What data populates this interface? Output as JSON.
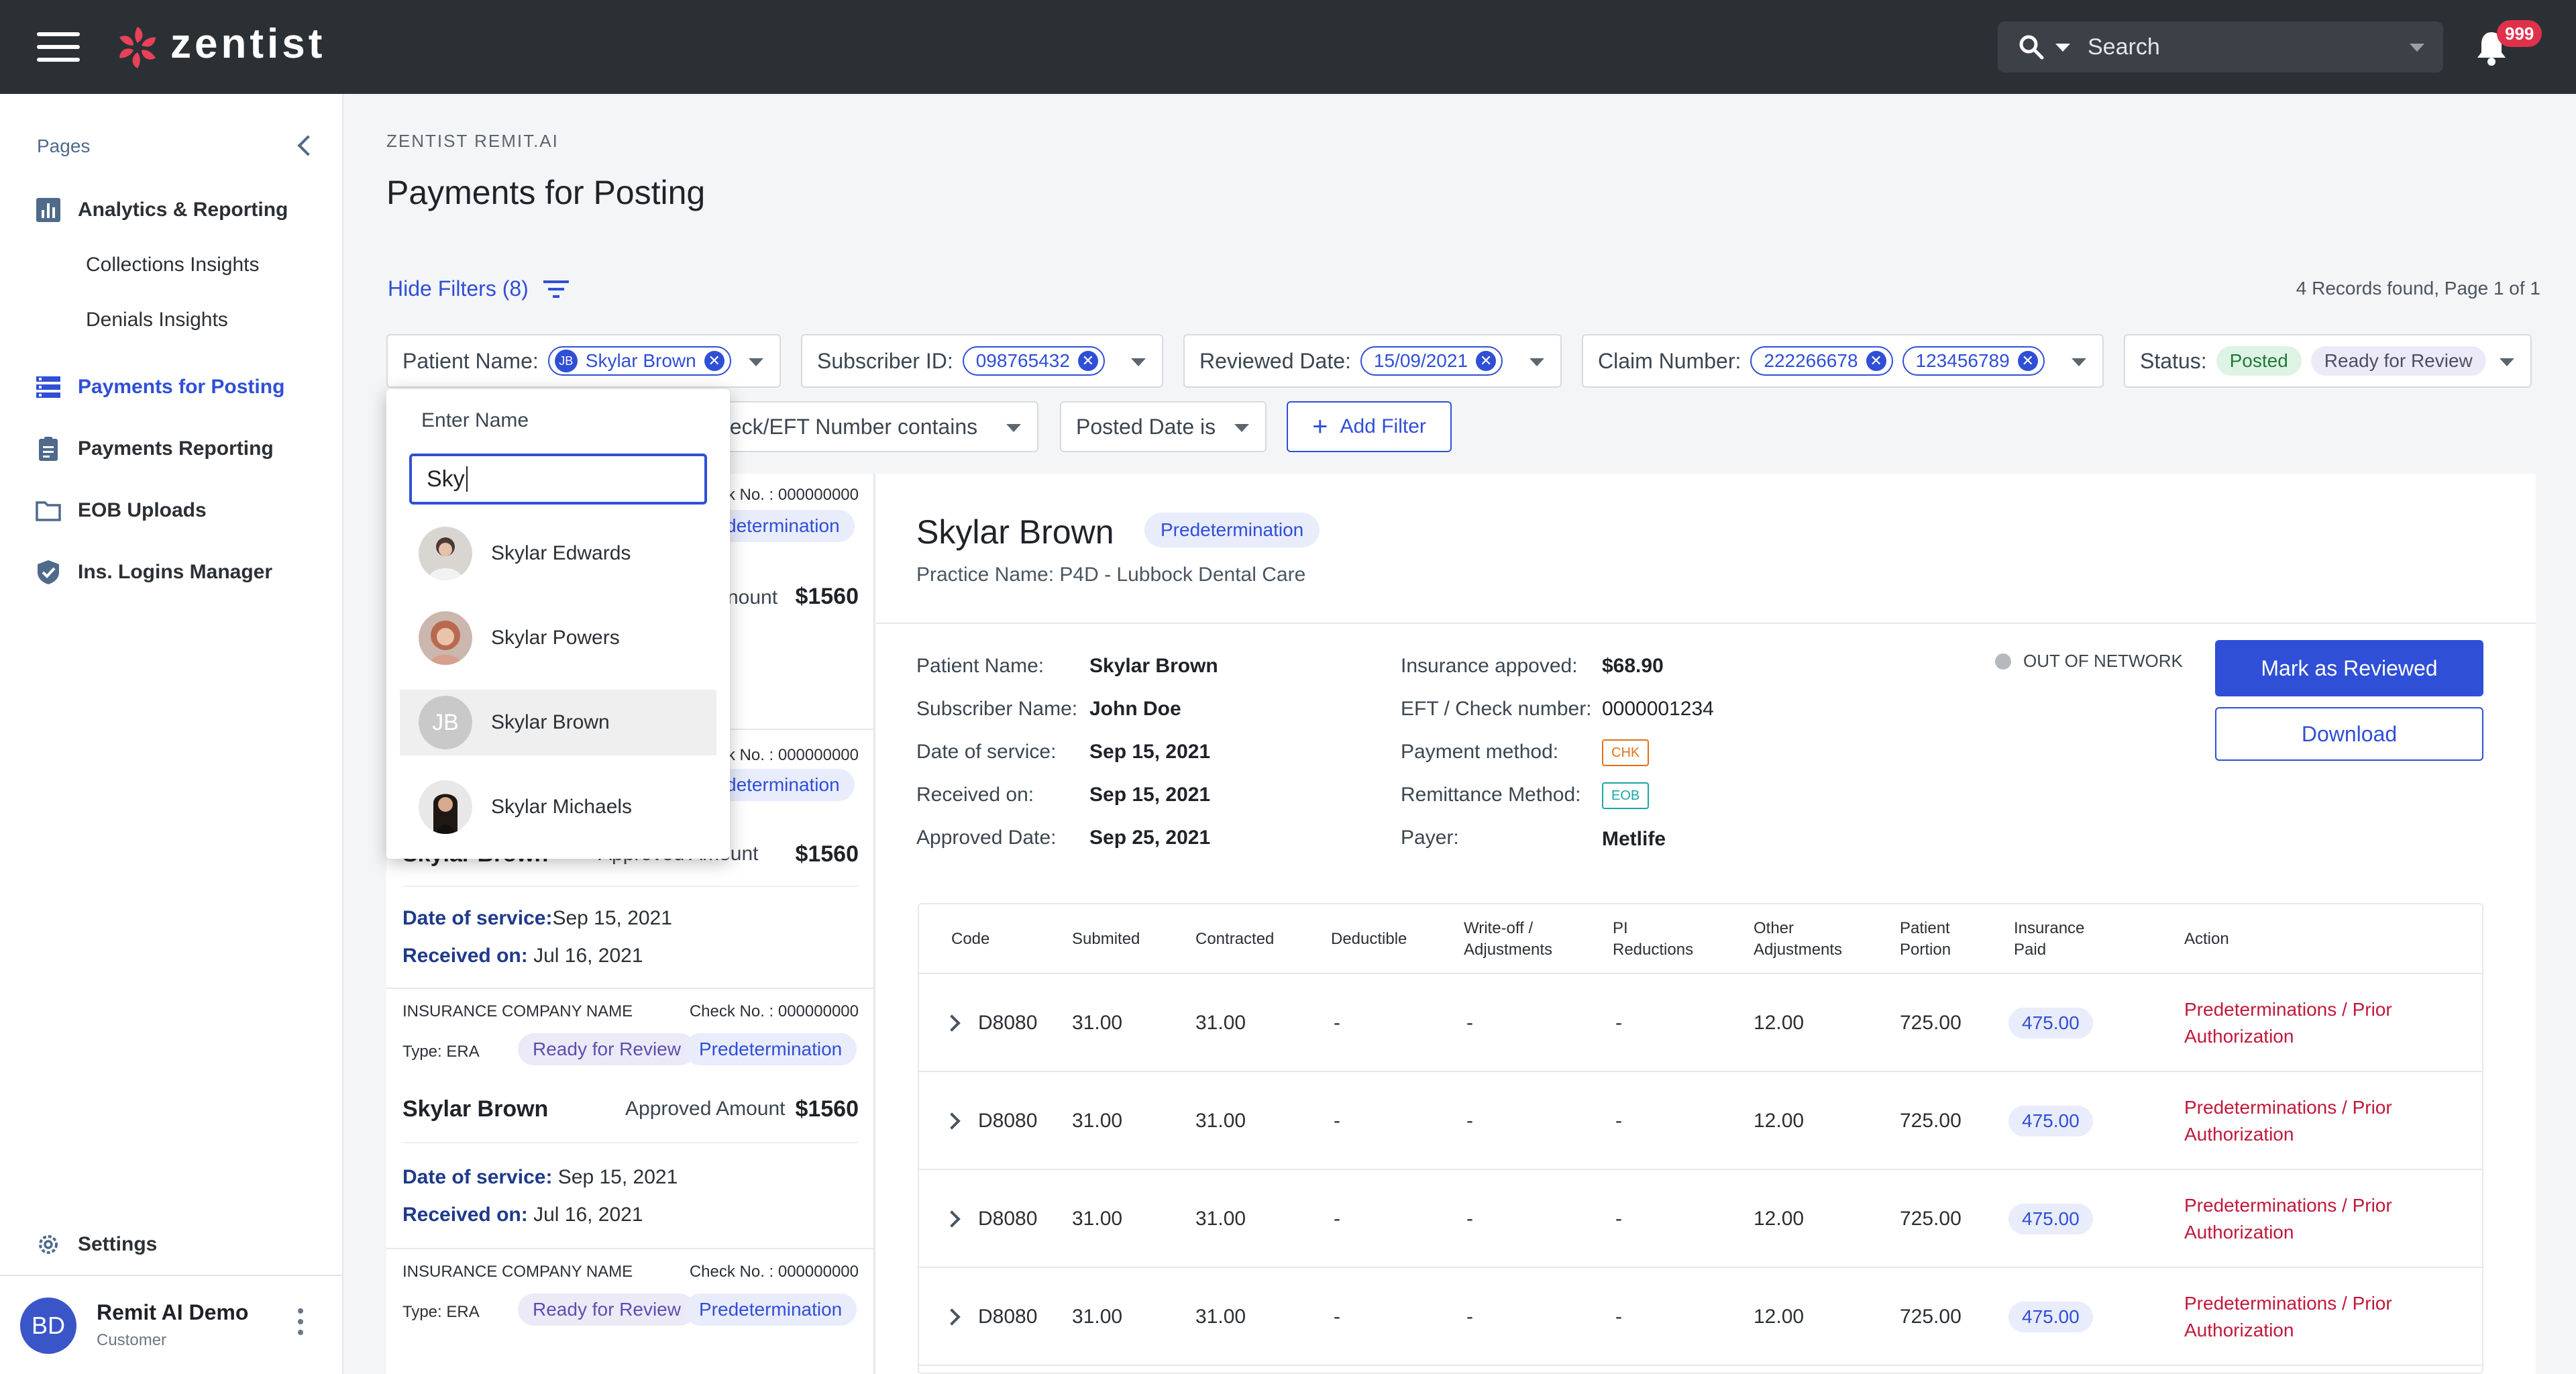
{
  "app": {
    "brand": "zentist",
    "search_placeholder": "Search",
    "notifications": "999"
  },
  "sidebar": {
    "section_label": "Pages",
    "items": [
      {
        "label": "Analytics & Reporting",
        "icon": "bar-chart-icon"
      },
      {
        "label": "Collections Insights"
      },
      {
        "label": "Denials Insights"
      },
      {
        "label": "Payments for Posting",
        "icon": "list-icon",
        "active": true
      },
      {
        "label": "Payments Reporting",
        "icon": "clipboard-icon"
      },
      {
        "label": "EOB Uploads",
        "icon": "folder-icon"
      },
      {
        "label": "Ins. Logins Manager",
        "icon": "shield-check-icon"
      }
    ],
    "settings_label": "Settings",
    "user": {
      "initials": "BD",
      "name": "Remit AI Demo",
      "role": "Customer"
    }
  },
  "header": {
    "breadcrumb": "ZENTIST REMIT.AI",
    "title": "Payments for Posting",
    "hide_filters": "Hide Filters (8)",
    "records": "4 Records found, Page 1 of 1"
  },
  "filters": {
    "patient": {
      "label": "Patient Name:",
      "initials": "JB",
      "chip": "Skylar Brown"
    },
    "subscriber": {
      "label": "Subscriber ID:",
      "chip": "098765432"
    },
    "reviewed": {
      "label": "Reviewed Date:",
      "chip": "15/09/2021"
    },
    "claim": {
      "label": "Claim Number:",
      "chips": [
        "222266678",
        "123456789"
      ]
    },
    "status": {
      "label": "Status:",
      "chips": [
        "Posted",
        "Ready for Review"
      ]
    },
    "check": {
      "label": "Check/EFT Number contains",
      "visible": "neck/EFT Number contains"
    },
    "posted": {
      "label": "Posted Date is"
    },
    "add_filter": "Add Filter"
  },
  "dropdown": {
    "header": "Enter Name",
    "input_value": "Sky",
    "options": [
      {
        "name": "Skylar Edwards"
      },
      {
        "name": "Skylar Powers"
      },
      {
        "name": "Skylar Brown",
        "initials": "JB",
        "selected": true
      },
      {
        "name": "Skylar Michaels"
      }
    ]
  },
  "list": {
    "cards": [
      {
        "check_partial": "ck No. : 000000000",
        "pill": "determination",
        "amt_partial": "nount",
        "amount": "$1560"
      },
      {
        "check_partial": "ck No. : 000000000",
        "pill": "determination",
        "name_partial": "Skylar Brown",
        "approved": "Approved Amount",
        "amount": "$1560",
        "dos_label": "Date of service:",
        "dos": "Sep 15, 2021",
        "rec_label": "Received on:",
        "rec": "Jul 16, 2021"
      },
      {
        "company": "INSURANCE COMPANY NAME",
        "check": "Check No. : 000000000",
        "type": "Type: ERA",
        "status": "Ready for Review",
        "pill": "Predetermination",
        "name": "Skylar Brown",
        "approved": "Approved Amount",
        "amount": "$1560",
        "dos_label": "Date of service:",
        "dos": "Sep 15, 2021",
        "rec_label": "Received on:",
        "rec": "Jul 16, 2021"
      },
      {
        "company": "INSURANCE COMPANY NAME",
        "check": "Check No. : 000000000",
        "type": "Type: ERA",
        "status": "Ready for Review",
        "pill": "Predetermination"
      }
    ]
  },
  "detail": {
    "name": "Skylar Brown",
    "badge": "Predetermination",
    "practice": "Practice Name: P4D - Lubbock Dental Care",
    "fields_left": [
      {
        "label": "Patient Name:",
        "value": "Skylar Brown"
      },
      {
        "label": "Subscriber Name:",
        "value": "John Doe"
      },
      {
        "label": "Date of service:",
        "value": "Sep 15, 2021"
      },
      {
        "label": "Received on:",
        "value": "Sep 15, 2021"
      },
      {
        "label": "Approved Date:",
        "value": "Sep 25, 2021"
      }
    ],
    "fields_right": [
      {
        "label": "Insurance appoved:",
        "value": "$68.90"
      },
      {
        "label": "EFT / Check number:",
        "value": "0000001234"
      },
      {
        "label": "Payment method:",
        "tag": "CHK"
      },
      {
        "label": "Remittance Method:",
        "tag": "EOB"
      },
      {
        "label": "Payer:",
        "value": "Metlife"
      }
    ],
    "network": "OUT OF NETWORK",
    "mark_reviewed": "Mark as Reviewed",
    "download": "Download",
    "colors": {
      "chk": "#e0701a",
      "eob": "#1aa6a6"
    }
  },
  "table": {
    "headers": [
      "Code",
      "Submited",
      "Contracted",
      "Deductible",
      "Write-off / Adjustments",
      "PI Reductions",
      "Other Adjustments",
      "Patient Portion",
      "Insurance Paid",
      "Action"
    ],
    "rows": [
      {
        "code": "D8080",
        "submitted": "31.00",
        "contracted": "31.00",
        "deductible": "-",
        "writeoff": "-",
        "pi": "-",
        "other": "12.00",
        "patient": "725.00",
        "paid": "475.00",
        "action": "Predeterminations / Prior Authorization"
      },
      {
        "code": "D8080",
        "submitted": "31.00",
        "contracted": "31.00",
        "deductible": "-",
        "writeoff": "-",
        "pi": "-",
        "other": "12.00",
        "patient": "725.00",
        "paid": "475.00",
        "action": "Predeterminations / Prior Authorization"
      },
      {
        "code": "D8080",
        "submitted": "31.00",
        "contracted": "31.00",
        "deductible": "-",
        "writeoff": "-",
        "pi": "-",
        "other": "12.00",
        "patient": "725.00",
        "paid": "475.00",
        "action": "Predeterminations / Prior Authorization"
      },
      {
        "code": "D8080",
        "submitted": "31.00",
        "contracted": "31.00",
        "deductible": "-",
        "writeoff": "-",
        "pi": "-",
        "other": "12.00",
        "patient": "725.00",
        "paid": "475.00",
        "action": "Predeterminations / Prior Authorization"
      }
    ]
  },
  "colors": {
    "accent": "#2f4fd6",
    "topbar": "#2b3035",
    "action": "#c0183a"
  }
}
